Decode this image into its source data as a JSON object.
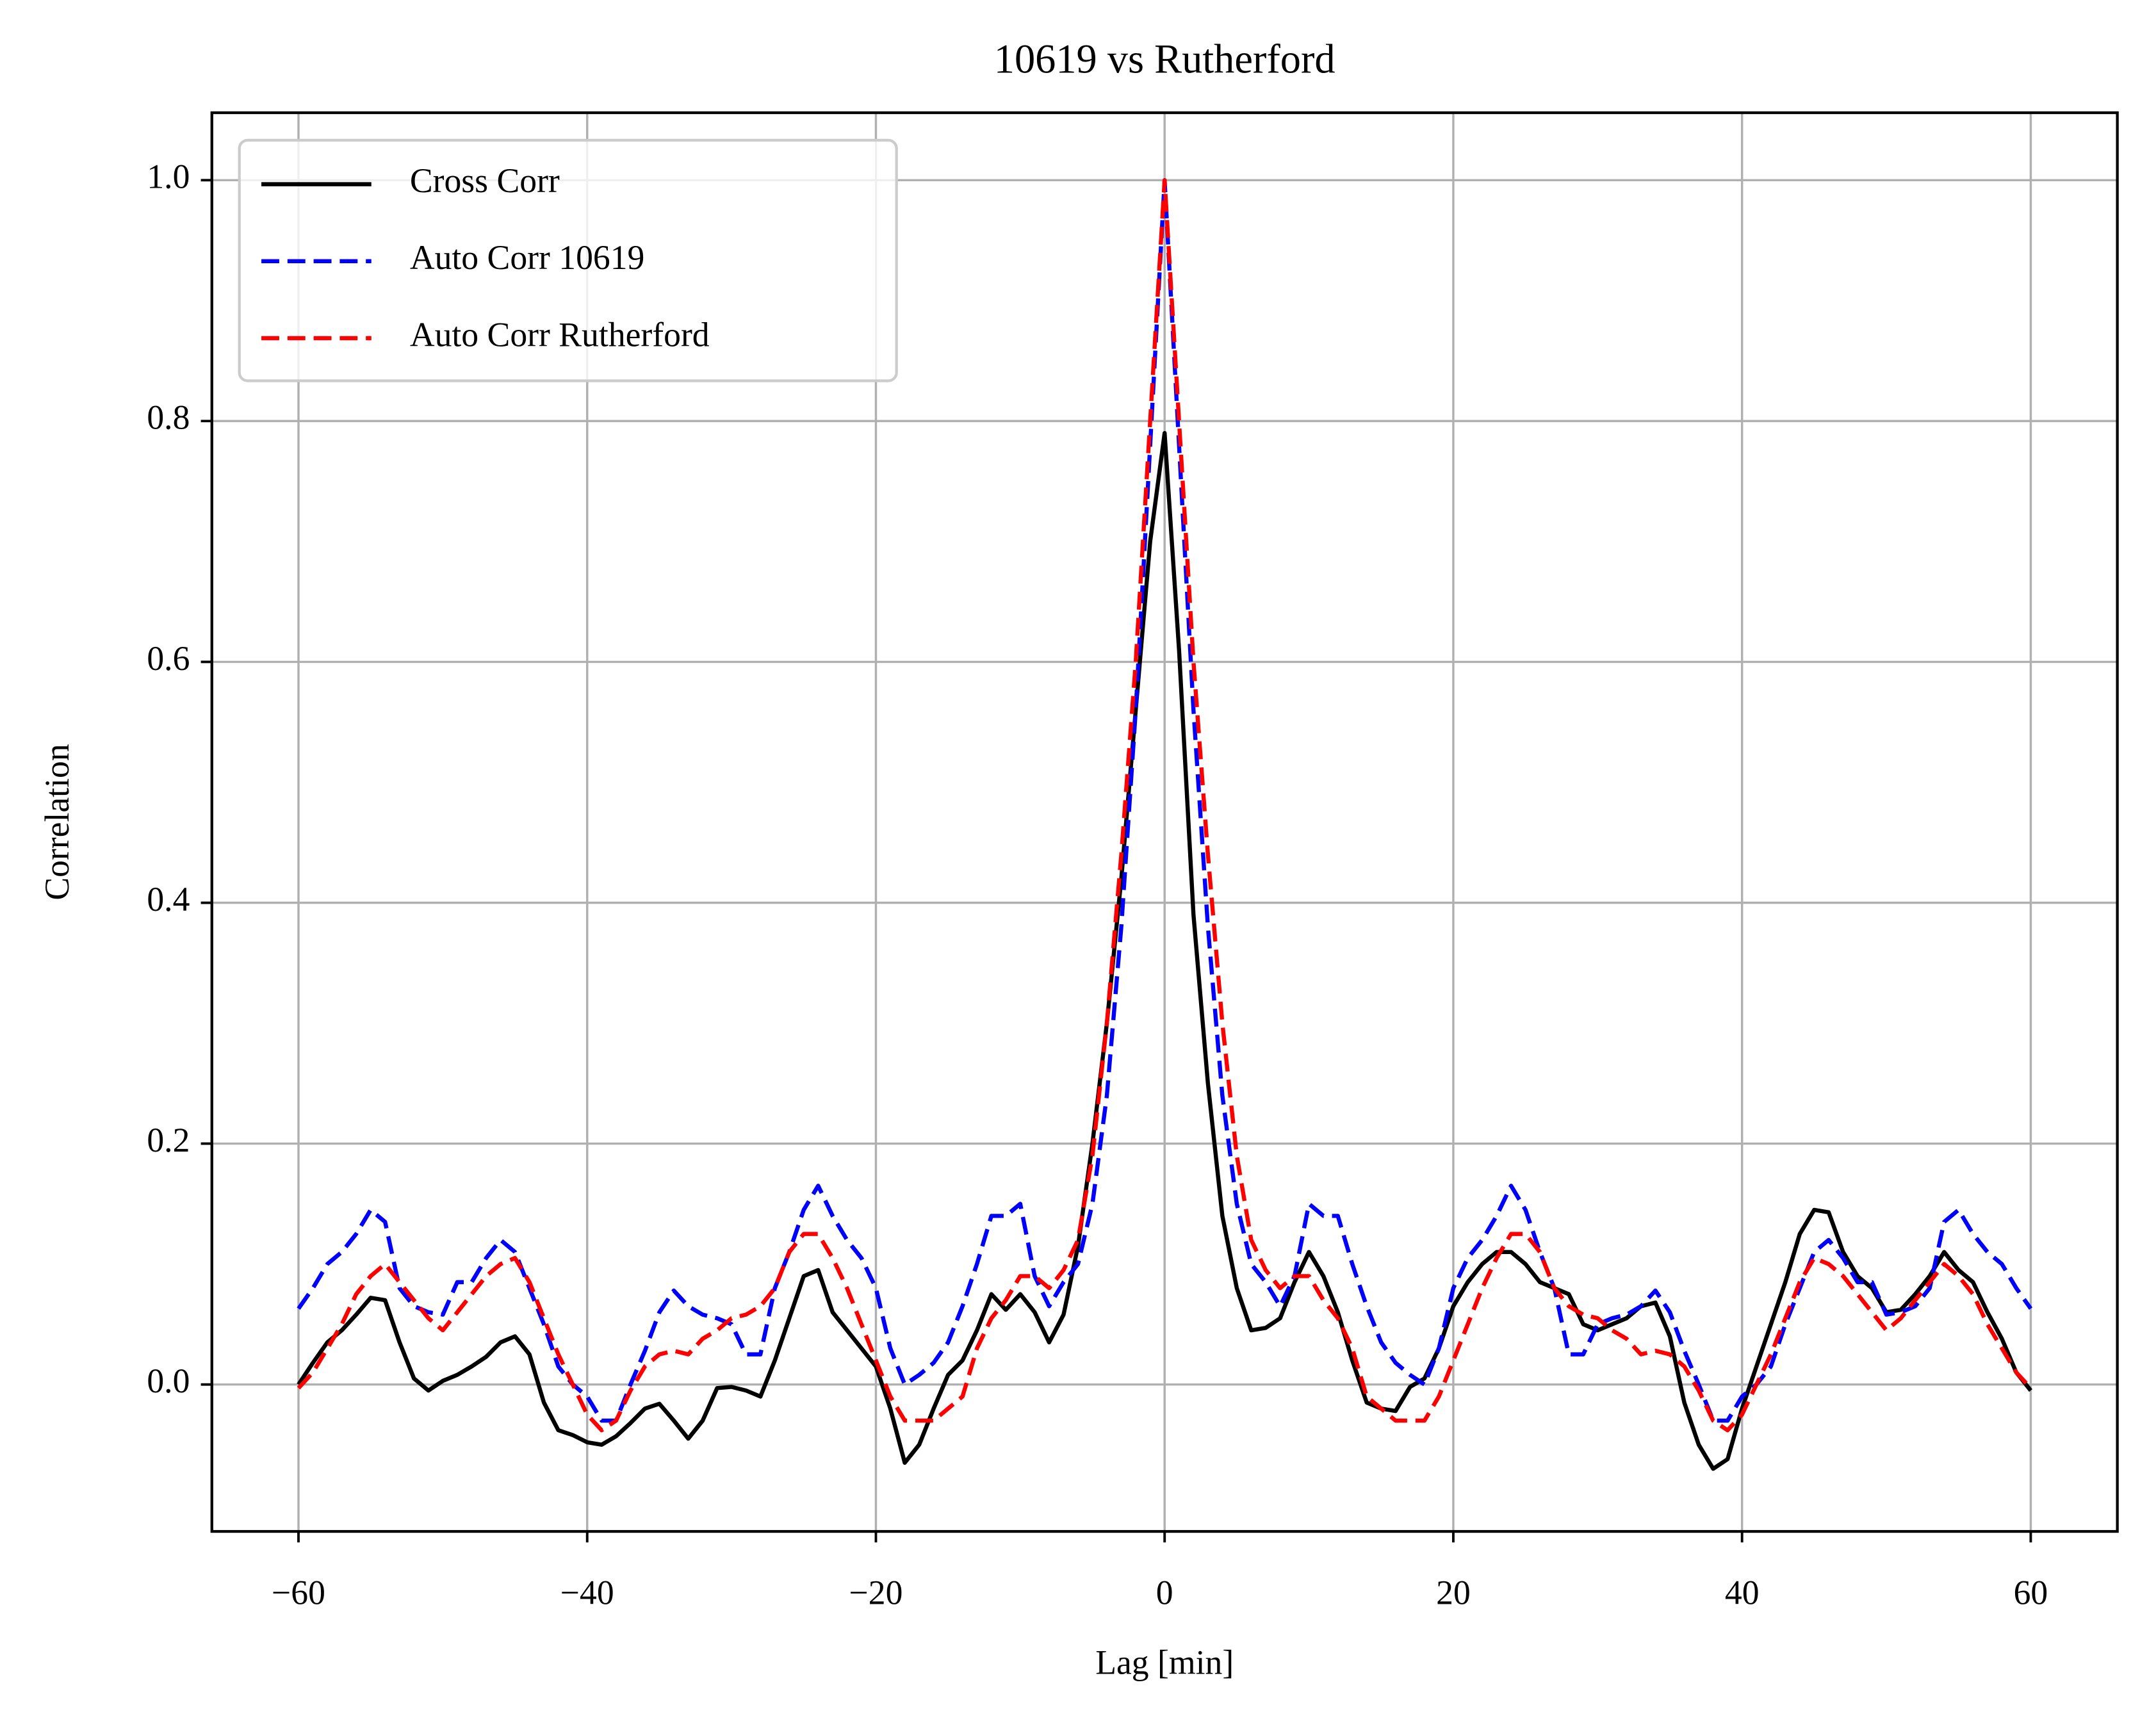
{
  "chart_data": {
    "type": "line",
    "title": "10619 vs Rutherford",
    "x_label": "Lag [min]",
    "y_label": "Correlation",
    "grid": true,
    "legend": "upper left",
    "xlim": [
      -66,
      66
    ],
    "ylim": [
      -0.122,
      1.056
    ],
    "xticks": [
      {
        "value": -60,
        "label": "−60"
      },
      {
        "value": -40,
        "label": "−40"
      },
      {
        "value": -20,
        "label": "−20"
      },
      0,
      20,
      40,
      60
    ],
    "yticks": [
      {
        "value": 0,
        "label": "0.0"
      },
      0.2,
      0.4,
      0.6,
      0.8,
      {
        "value": 1,
        "label": "1.0"
      }
    ],
    "x": [
      -60,
      -59,
      -58,
      -57,
      -56,
      -55,
      -54,
      -53,
      -52,
      -51,
      -50,
      -49,
      -48,
      -47,
      -46,
      -45,
      -44,
      -43,
      -42,
      -41,
      -40,
      -39,
      -38,
      -37,
      -36,
      -35,
      -34,
      -33,
      -32,
      -31,
      -30,
      -29,
      -28,
      -27,
      -26,
      -25,
      -24,
      -23,
      -22,
      -21,
      -20,
      -19,
      -18,
      -17,
      -16,
      -15,
      -14,
      -13,
      -12,
      -11,
      -10,
      -9,
      -8,
      -7,
      -6,
      -5,
      -4,
      -3,
      -2,
      -1,
      0,
      1,
      2,
      3,
      4,
      5,
      6,
      7,
      8,
      9,
      10,
      11,
      12,
      13,
      14,
      15,
      16,
      17,
      18,
      19,
      20,
      21,
      22,
      23,
      24,
      25,
      26,
      27,
      28,
      29,
      30,
      31,
      32,
      33,
      34,
      35,
      36,
      37,
      38,
      39,
      40,
      41,
      42,
      43,
      44,
      45,
      46,
      47,
      48,
      49,
      50,
      51,
      52,
      53,
      54,
      55,
      56,
      57,
      58,
      59,
      60
    ],
    "series": [
      {
        "name": "Cross Corr",
        "color": "#000000",
        "dash": "solid",
        "values": [
          0.0,
          0.018,
          0.035,
          0.045,
          0.058,
          0.072,
          0.07,
          0.035,
          0.005,
          -0.005,
          0.003,
          0.008,
          0.015,
          0.023,
          0.035,
          0.04,
          0.025,
          -0.015,
          -0.038,
          -0.042,
          -0.048,
          -0.05,
          -0.043,
          -0.032,
          -0.02,
          -0.016,
          -0.03,
          -0.045,
          -0.03,
          -0.003,
          -0.002,
          -0.005,
          -0.01,
          0.02,
          0.055,
          0.09,
          0.095,
          0.06,
          0.045,
          0.03,
          0.015,
          -0.02,
          -0.065,
          -0.05,
          -0.02,
          0.008,
          0.02,
          0.045,
          0.075,
          0.062,
          0.075,
          0.06,
          0.035,
          0.058,
          0.115,
          0.2,
          0.3,
          0.42,
          0.56,
          0.7,
          0.79,
          0.61,
          0.39,
          0.25,
          0.14,
          0.08,
          0.045,
          0.047,
          0.055,
          0.085,
          0.11,
          0.09,
          0.06,
          0.02,
          -0.015,
          -0.02,
          -0.022,
          -0.002,
          0.005,
          0.03,
          0.065,
          0.085,
          0.1,
          0.11,
          0.11,
          0.1,
          0.085,
          0.08,
          0.075,
          0.05,
          0.045,
          0.05,
          0.055,
          0.065,
          0.068,
          0.04,
          -0.015,
          -0.05,
          -0.07,
          -0.062,
          -0.02,
          0.015,
          0.05,
          0.085,
          0.125,
          0.145,
          0.143,
          0.11,
          0.09,
          0.08,
          0.06,
          0.062,
          0.075,
          0.09,
          0.11,
          0.095,
          0.085,
          0.06,
          0.038,
          0.01,
          -0.005
        ]
      },
      {
        "name": "Auto Corr 10619",
        "color": "#0000ff",
        "dash": "dashed",
        "values": [
          0.063,
          0.08,
          0.1,
          0.11,
          0.125,
          0.145,
          0.135,
          0.08,
          0.065,
          0.06,
          0.058,
          0.085,
          0.085,
          0.105,
          0.12,
          0.11,
          0.08,
          0.05,
          0.015,
          0.0,
          -0.01,
          -0.03,
          -0.03,
          0.0,
          0.028,
          0.06,
          0.078,
          0.065,
          0.058,
          0.055,
          0.05,
          0.025,
          0.025,
          0.08,
          0.11,
          0.145,
          0.165,
          0.14,
          0.12,
          0.105,
          0.08,
          0.03,
          0.0,
          0.008,
          0.018,
          0.035,
          0.065,
          0.1,
          0.14,
          0.14,
          0.15,
          0.09,
          0.065,
          0.085,
          0.1,
          0.15,
          0.24,
          0.38,
          0.56,
          0.78,
          1.0,
          0.78,
          0.56,
          0.38,
          0.24,
          0.15,
          0.1,
          0.085,
          0.065,
          0.09,
          0.15,
          0.14,
          0.14,
          0.1,
          0.065,
          0.035,
          0.018,
          0.008,
          0.0,
          0.03,
          0.08,
          0.105,
          0.12,
          0.14,
          0.165,
          0.145,
          0.11,
          0.08,
          0.025,
          0.025,
          0.05,
          0.055,
          0.058,
          0.065,
          0.078,
          0.06,
          0.028,
          0.0,
          -0.03,
          -0.03,
          -0.01,
          0.0,
          0.015,
          0.05,
          0.08,
          0.11,
          0.12,
          0.105,
          0.085,
          0.085,
          0.058,
          0.06,
          0.065,
          0.08,
          0.135,
          0.145,
          0.125,
          0.11,
          0.1,
          0.08,
          0.063
        ]
      },
      {
        "name": "Auto Corr Rutherford",
        "color": "#ff0000",
        "dash": "dashed",
        "values": [
          -0.003,
          0.01,
          0.03,
          0.05,
          0.075,
          0.09,
          0.1,
          0.085,
          0.07,
          0.055,
          0.045,
          0.06,
          0.075,
          0.09,
          0.1,
          0.105,
          0.085,
          0.055,
          0.025,
          0.0,
          -0.025,
          -0.038,
          -0.03,
          -0.005,
          0.015,
          0.025,
          0.028,
          0.025,
          0.038,
          0.045,
          0.055,
          0.058,
          0.065,
          0.08,
          0.11,
          0.125,
          0.125,
          0.105,
          0.08,
          0.05,
          0.02,
          -0.01,
          -0.03,
          -0.03,
          -0.03,
          -0.02,
          -0.01,
          0.03,
          0.055,
          0.07,
          0.09,
          0.09,
          0.08,
          0.095,
          0.12,
          0.19,
          0.3,
          0.44,
          0.6,
          0.8,
          1.0,
          0.8,
          0.6,
          0.44,
          0.3,
          0.19,
          0.12,
          0.095,
          0.08,
          0.09,
          0.09,
          0.07,
          0.055,
          0.03,
          -0.01,
          -0.02,
          -0.03,
          -0.03,
          -0.03,
          -0.01,
          0.02,
          0.05,
          0.08,
          0.105,
          0.125,
          0.125,
          0.11,
          0.08,
          0.065,
          0.058,
          0.055,
          0.045,
          0.038,
          0.025,
          0.028,
          0.025,
          0.015,
          -0.005,
          -0.03,
          -0.038,
          -0.025,
          0.0,
          0.025,
          0.055,
          0.085,
          0.105,
          0.1,
          0.09,
          0.075,
          0.06,
          0.045,
          0.055,
          0.07,
          0.085,
          0.1,
          0.09,
          0.075,
          0.05,
          0.03,
          0.01,
          -0.003
        ]
      }
    ]
  }
}
